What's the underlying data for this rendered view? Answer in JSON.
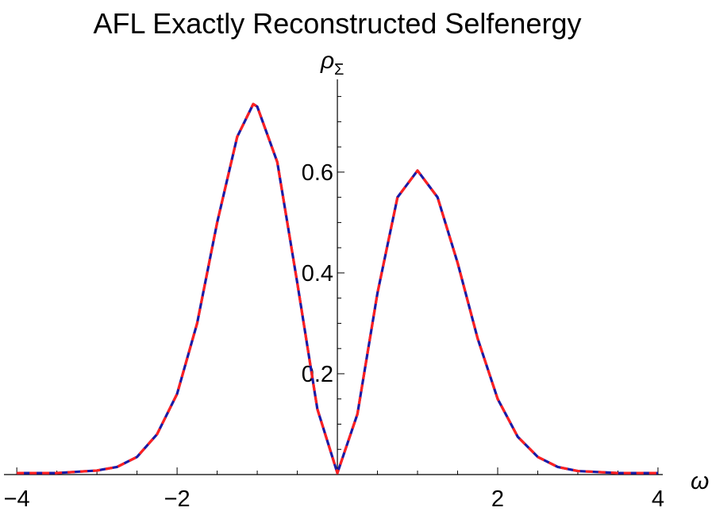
{
  "chart_data": {
    "type": "line",
    "title": "AFL Exactly Reconstructed Selfenergy",
    "xlabel": "ω",
    "ylabel": "ρ",
    "ylabel_subscript": "Σ",
    "x": [
      -4,
      -3.5,
      -3,
      -2.75,
      -2.5,
      -2.25,
      -2,
      -1.75,
      -1.5,
      -1.25,
      -1.05,
      -1,
      -0.75,
      -0.5,
      -0.25,
      0,
      0.25,
      0.5,
      0.75,
      1,
      1.25,
      1.5,
      1.75,
      2,
      2.25,
      2.5,
      2.75,
      3,
      3.5,
      4
    ],
    "series": [
      {
        "color": "#1a1aa6",
        "dashed": false,
        "values": [
          0.003,
          0.003,
          0.008,
          0.015,
          0.035,
          0.08,
          0.16,
          0.3,
          0.5,
          0.67,
          0.735,
          0.73,
          0.62,
          0.38,
          0.13,
          0.003,
          0.12,
          0.36,
          0.55,
          0.603,
          0.55,
          0.42,
          0.27,
          0.15,
          0.075,
          0.035,
          0.015,
          0.007,
          0.003,
          0.003
        ]
      },
      {
        "color": "#ff2020",
        "dashed": true,
        "values": [
          0.003,
          0.003,
          0.008,
          0.015,
          0.035,
          0.08,
          0.16,
          0.3,
          0.5,
          0.67,
          0.735,
          0.73,
          0.62,
          0.38,
          0.13,
          0.003,
          0.12,
          0.36,
          0.55,
          0.603,
          0.55,
          0.42,
          0.27,
          0.15,
          0.075,
          0.035,
          0.015,
          0.007,
          0.003,
          0.003
        ]
      }
    ],
    "xlim": [
      -4.16,
      4.06
    ],
    "ylim": [
      0,
      0.784
    ],
    "xticks": [
      {
        "value": -4,
        "label": "−4"
      },
      {
        "value": -2,
        "label": "−2"
      },
      2,
      4
    ],
    "yticks": [
      0.2,
      0.4,
      0.6
    ],
    "xminorticks": [
      -3.5,
      -3,
      -2.5,
      -1.5,
      -1,
      -0.5,
      0.5,
      1,
      1.5,
      2.5,
      3,
      3.5
    ],
    "yminorticks": [
      0.05,
      0.1,
      0.15,
      0.25,
      0.3,
      0.35,
      0.45,
      0.5,
      0.55,
      0.65,
      0.7,
      0.75
    ]
  }
}
